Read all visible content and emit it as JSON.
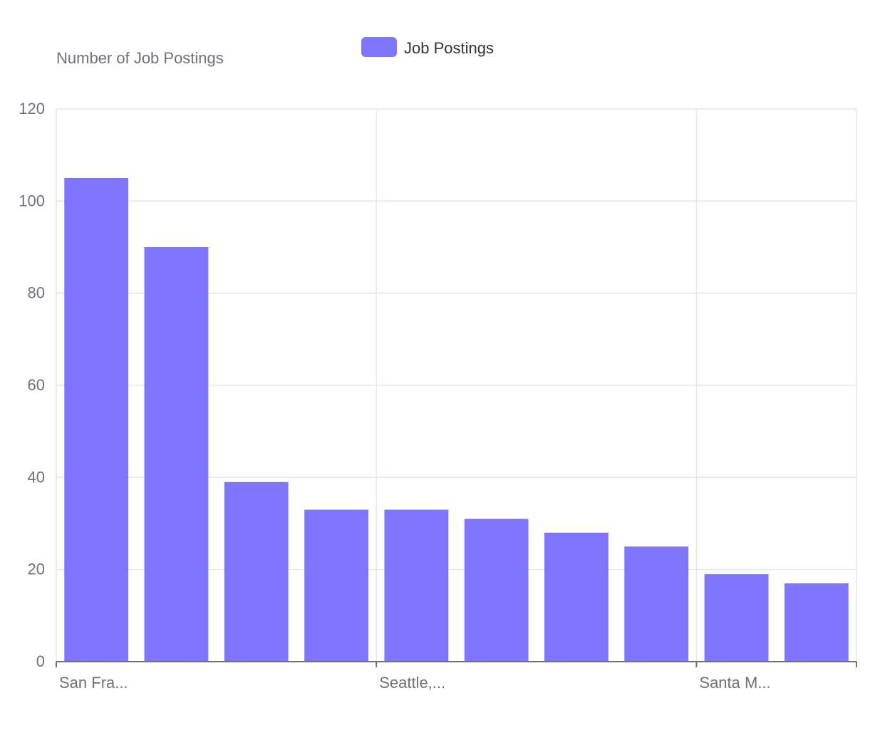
{
  "chart_data": {
    "type": "bar",
    "ylabel": "Number of Job Postings",
    "xlabel": "",
    "title": "",
    "legend": {
      "placement": "top-center",
      "entries": [
        "Job Postings"
      ]
    },
    "categories": [
      "San Fra...",
      "",
      "",
      "",
      "Seattle,...",
      "",
      "",
      "",
      "Santa M...",
      ""
    ],
    "series": [
      {
        "name": "Job Postings",
        "color": "#7f76ff",
        "values": [
          105,
          90,
          39,
          33,
          33,
          31,
          28,
          25,
          19,
          17
        ]
      }
    ],
    "ylim": [
      0,
      120
    ],
    "yticks": [
      0,
      20,
      40,
      60,
      80,
      100,
      120
    ],
    "x_tick_labels": [
      "San Fra...",
      "Seattle,...",
      "Santa M..."
    ],
    "x_tick_label_positions": [
      0,
      4,
      8
    ],
    "grid": {
      "horizontal": true,
      "vertical": true
    },
    "colors": {
      "bar": "#7f76ff",
      "grid": "#e3e7f0",
      "axis": "#6e7079",
      "text": "#6e7079",
      "legend_text": "#333333"
    }
  }
}
